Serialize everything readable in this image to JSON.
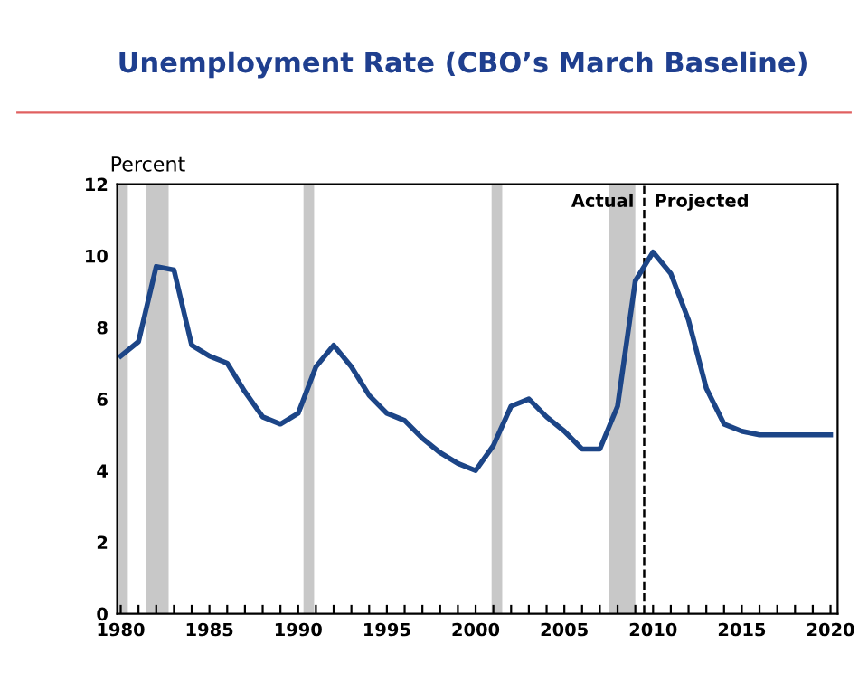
{
  "chart_data": {
    "type": "line",
    "title": "Unemployment Rate (CBO’s March Baseline)",
    "ylabel": "Percent",
    "x": [
      1980,
      1981,
      1982,
      1983,
      1984,
      1985,
      1986,
      1987,
      1988,
      1989,
      1990,
      1991,
      1992,
      1993,
      1994,
      1995,
      1996,
      1997,
      1998,
      1999,
      2000,
      2001,
      2002,
      2003,
      2004,
      2005,
      2006,
      2007,
      2008,
      2009,
      2010,
      2011,
      2012,
      2013,
      2014,
      2015,
      2016,
      2017,
      2018,
      2019,
      2020
    ],
    "series": [
      {
        "color": "#1c4587",
        "values": [
          7.2,
          7.6,
          9.7,
          9.6,
          7.5,
          7.2,
          7.0,
          6.2,
          5.5,
          5.3,
          5.6,
          6.9,
          7.5,
          6.9,
          6.1,
          5.6,
          5.4,
          4.9,
          4.5,
          4.2,
          4.0,
          4.7,
          5.8,
          6.0,
          5.5,
          5.1,
          4.6,
          4.6,
          5.8,
          9.3,
          10.1,
          9.5,
          8.2,
          6.3,
          5.3,
          5.1,
          5.0,
          5.0,
          5.0,
          5.0,
          5.0
        ]
      }
    ],
    "xlim": [
      1979.8,
      2020.4
    ],
    "ylim": [
      0,
      12
    ],
    "yticks": [
      0,
      2,
      4,
      6,
      8,
      10,
      12
    ],
    "xticks": [
      1980,
      {
        "value": 1981,
        "label": null
      },
      {
        "value": 1982,
        "label": null
      },
      {
        "value": 1983,
        "label": null
      },
      {
        "value": 1984,
        "label": null
      },
      1985,
      {
        "value": 1986,
        "label": null
      },
      {
        "value": 1987,
        "label": null
      },
      {
        "value": 1988,
        "label": null
      },
      {
        "value": 1989,
        "label": null
      },
      1990,
      {
        "value": 1991,
        "label": null
      },
      {
        "value": 1992,
        "label": null
      },
      {
        "value": 1993,
        "label": null
      },
      {
        "value": 1994,
        "label": null
      },
      1995,
      {
        "value": 1996,
        "label": null
      },
      {
        "value": 1997,
        "label": null
      },
      {
        "value": 1998,
        "label": null
      },
      {
        "value": 1999,
        "label": null
      },
      2000,
      {
        "value": 2001,
        "label": null
      },
      {
        "value": 2002,
        "label": null
      },
      {
        "value": 2003,
        "label": null
      },
      {
        "value": 2004,
        "label": null
      },
      2005,
      {
        "value": 2006,
        "label": null
      },
      {
        "value": 2007,
        "label": null
      },
      {
        "value": 2008,
        "label": null
      },
      {
        "value": 2009,
        "label": null
      },
      2010,
      {
        "value": 2011,
        "label": null
      },
      {
        "value": 2012,
        "label": null
      },
      {
        "value": 2013,
        "label": null
      },
      {
        "value": 2014,
        "label": null
      },
      2015,
      {
        "value": 2016,
        "label": null
      },
      {
        "value": 2017,
        "label": null
      },
      {
        "value": 2018,
        "label": null
      },
      {
        "value": 2019,
        "label": null
      },
      2020
    ],
    "bands": [
      {
        "axis": "x",
        "from": 1979.8,
        "to": 1980.4,
        "color": "#c8c8c8"
      },
      {
        "axis": "x",
        "from": 1981.4,
        "to": 1982.7,
        "color": "#c8c8c8"
      },
      {
        "axis": "x",
        "from": 1990.3,
        "to": 1990.9,
        "color": "#c8c8c8"
      },
      {
        "axis": "x",
        "from": 2000.9,
        "to": 2001.5,
        "color": "#c8c8c8"
      },
      {
        "axis": "x",
        "from": 2007.5,
        "to": 2009.0,
        "color": "#c8c8c8"
      }
    ],
    "ref_lines": [
      {
        "axis": "x",
        "value": 2009.5,
        "color": "#000000",
        "line_style": "dashed"
      }
    ],
    "annotations": [
      {
        "text": "Actual",
        "x": 2009.5,
        "y": 11.5
      },
      {
        "text": "Projected",
        "x": 2009.5,
        "y": 11.5
      }
    ],
    "grid": false,
    "legend": false,
    "marker": "none",
    "line_style": "solid"
  }
}
